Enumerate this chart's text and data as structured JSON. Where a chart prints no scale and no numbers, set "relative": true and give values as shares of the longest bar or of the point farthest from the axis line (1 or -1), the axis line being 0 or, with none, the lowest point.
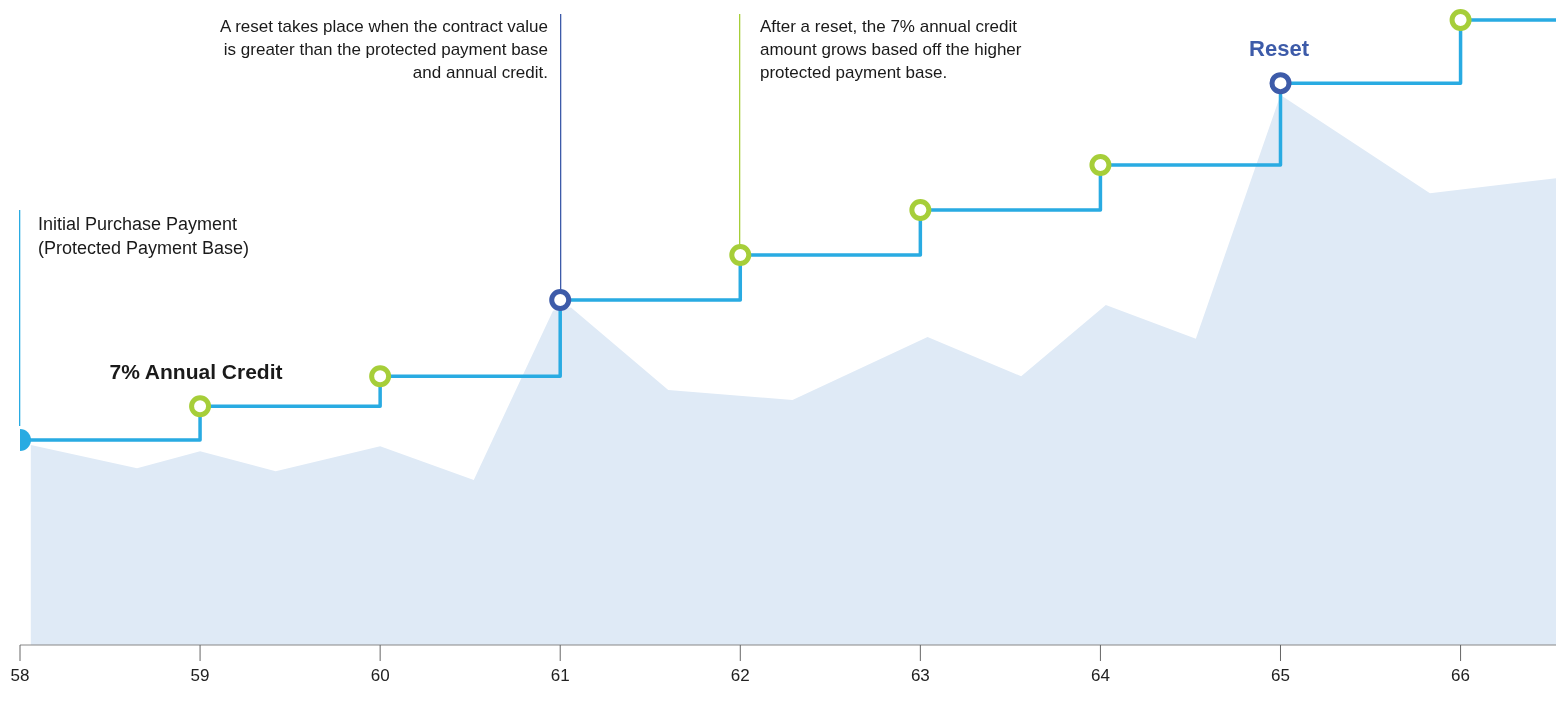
{
  "chart_data": {
    "type": "step",
    "relative": true,
    "xlim": [
      58,
      66.53
    ],
    "xticks": [
      58,
      59,
      60,
      61,
      62,
      63,
      64,
      65,
      66
    ],
    "line_style": "solid",
    "series": [
      {
        "type": "area",
        "color": "#dfeaf6",
        "x": [
          58.06,
          58.65,
          59,
          59.42,
          60,
          60.52,
          60.96,
          61.06,
          61.6,
          62.29,
          63.04,
          63.56,
          64.03,
          64.53,
          65,
          65.83,
          66.53
        ],
        "values": [
          0.32,
          0.283,
          0.31,
          0.278,
          0.318,
          0.264,
          0.535,
          0.54,
          0.408,
          0.392,
          0.493,
          0.43,
          0.544,
          0.49,
          0.88,
          0.723,
          0.747
        ]
      },
      {
        "color": "#29abe2",
        "marker": "circle",
        "colors": [
          "#29abe2",
          "#a6ce39",
          "#a6ce39",
          "#3d5ba9",
          "#a6ce39",
          "#a6ce39",
          "#a6ce39",
          "#3d5ba9",
          "#a6ce39",
          null
        ],
        "x": [
          58,
          59,
          60,
          61,
          62,
          63,
          64,
          65,
          66,
          66.53
        ],
        "values": [
          0.328,
          0.382,
          0.43,
          0.552,
          0.624,
          0.696,
          0.768,
          0.899,
          1.0,
          1.0
        ]
      }
    ],
    "annotations": [
      "Initial Purchase Payment (Protected Payment Base)",
      "7% Annual Credit",
      "A reset takes place when the contract value is greater than the protected payment base and annual credit.",
      "After a reset, the 7% annual credit amount grows based off the higher protected payment base.",
      "Reset"
    ]
  }
}
